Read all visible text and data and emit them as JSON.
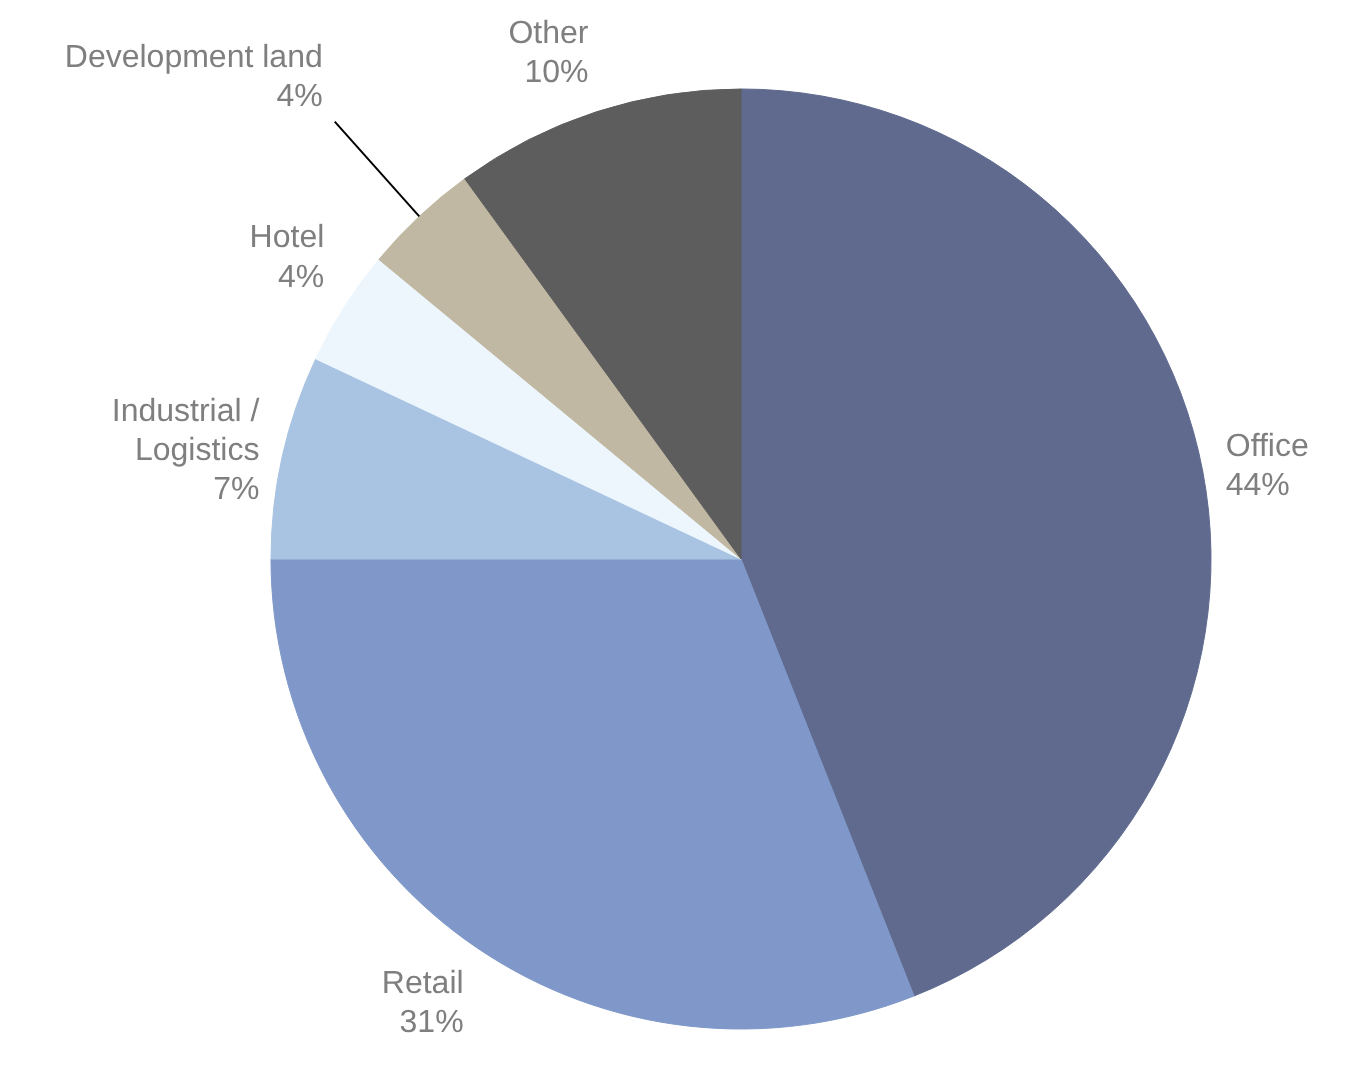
{
  "chart_data": {
    "type": "pie",
    "categories": [
      "Office",
      "Retail",
      "Industrial /\nLogistics",
      "Hotel",
      "Development land",
      "Other"
    ],
    "values": [
      44,
      31,
      7,
      4,
      4,
      10
    ],
    "value_labels": [
      "44%",
      "31%",
      "7%",
      "4%",
      "4%",
      "10%"
    ],
    "colors": [
      "#5f6a8e",
      "#7f98c9",
      "#a9c3e2",
      "#edf6fd",
      "#c0b8a2",
      "#5d5d5d"
    ]
  }
}
